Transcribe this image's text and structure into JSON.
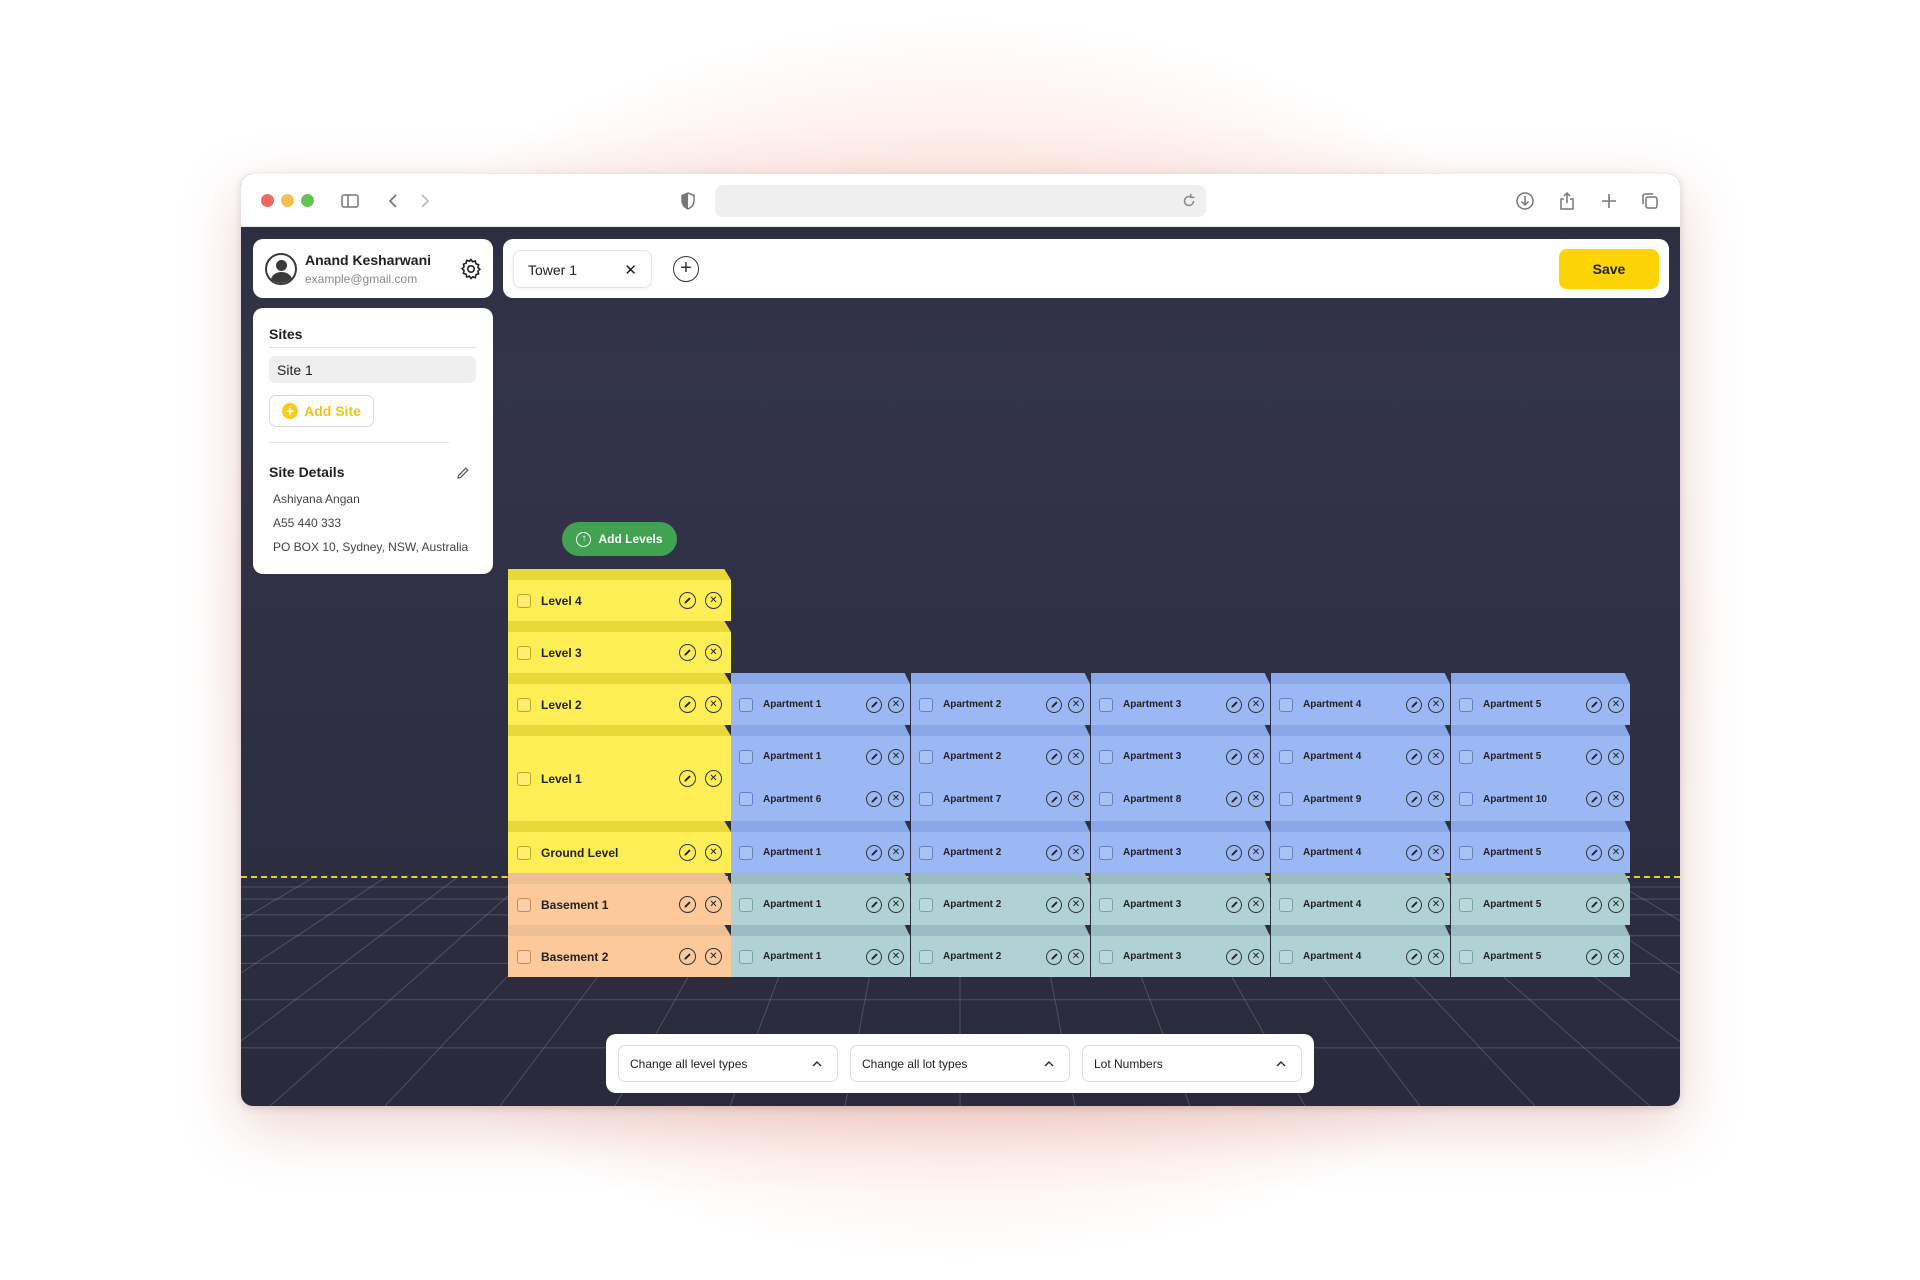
{
  "browser": {
    "traffic_colors": [
      "#ec6a5e",
      "#f4bf4f",
      "#61c554"
    ],
    "icons": [
      "sidebar-icon",
      "back-icon",
      "forward-icon",
      "shield-icon",
      "reload-icon",
      "download-icon",
      "share-icon",
      "new-tab-icon",
      "tabs-overview-icon"
    ]
  },
  "profile": {
    "name": "Anand Kesharwani",
    "email": "example@gmail.com"
  },
  "sites": {
    "title": "Sites",
    "items": [
      "Site 1"
    ],
    "add_label": "Add Site",
    "details_title": "Site Details",
    "details": [
      "Ashiyana Angan",
      "A55 440 333",
      "PO BOX 10, Sydney, NSW, Australia"
    ]
  },
  "tabs": [
    {
      "label": "Tower 1",
      "close": "✕"
    }
  ],
  "add_tab": "+",
  "save_label": "Save",
  "add_levels_label": "Add Levels",
  "levels": [
    {
      "label": "Level 4"
    },
    {
      "label": "Level 3"
    },
    {
      "label": "Level 2"
    },
    {
      "label": "Level 1"
    },
    {
      "label": "Ground Level"
    },
    {
      "label": "Basement 1"
    },
    {
      "label": "Basement 2"
    }
  ],
  "apartment_rows": [
    {
      "level": "Level 2",
      "lots": [
        "Apartment 1",
        "Apartment 2",
        "Apartment 3",
        "Apartment 4",
        "Apartment 5"
      ]
    },
    {
      "level": "Level 1",
      "lots": [
        "Apartment 1",
        "Apartment 2",
        "Apartment 3",
        "Apartment 4",
        "Apartment 5"
      ]
    },
    {
      "level": "Level 1",
      "lots": [
        "Apartment 6",
        "Apartment 7",
        "Apartment 8",
        "Apartment 9",
        "Apartment 10"
      ]
    },
    {
      "level": "Ground Level",
      "lots": [
        "Apartment 1",
        "Apartment 2",
        "Apartment 3",
        "Apartment 4",
        "Apartment 5"
      ]
    },
    {
      "level": "Basement 1",
      "lots": [
        "Apartment 1",
        "Apartment 2",
        "Apartment 3",
        "Apartment 4",
        "Apartment 5"
      ]
    },
    {
      "level": "Basement 2",
      "lots": [
        "Apartment 1",
        "Apartment 2",
        "Apartment 3",
        "Apartment 4",
        "Apartment 5"
      ]
    }
  ],
  "bottom_toolbar": {
    "level_types": "Change all level types",
    "lot_types": "Change all lot types",
    "lot_numbers": "Lot Numbers"
  },
  "colors": {
    "level": "#feee55",
    "basement": "#fdc89a",
    "apartment_upper": "#9bb8f5",
    "apartment_lower": "#b0d2d5",
    "save": "#fdd306",
    "add_levels": "#41a252",
    "ground_line": "#e7cc34"
  }
}
